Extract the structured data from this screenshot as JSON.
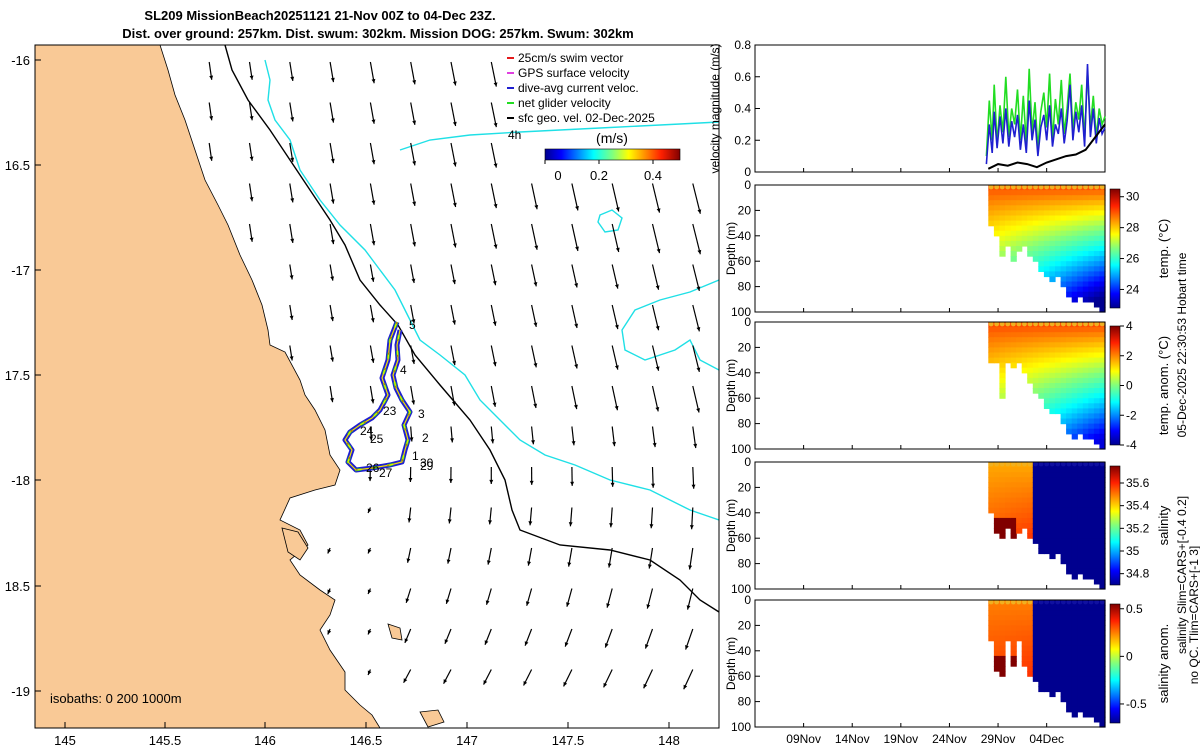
{
  "title": {
    "line1": "SL209 MissionBeach20251121 21-Nov 00Z to 04-Dec 23Z.",
    "line2": "Dist. over ground: 257km. Dist. swum: 302km. Mission DOG: 257km. Swum: 302km"
  },
  "colors": {
    "land": "#f9c996",
    "isobath_200": "#000000",
    "isobath_1000": "#1fe0e6",
    "swim_vector": "#e41a1c",
    "gps_velocity": "#e040e0",
    "dive_avg": "#1f1fd0",
    "net_velocity": "#22dd22",
    "geo_velocity": "#000000",
    "bottom_fill": "#0b0b7a"
  },
  "map": {
    "lon_ticks": [
      "145",
      "145.5",
      "146",
      "146.5",
      "147",
      "147.5",
      "148"
    ],
    "lat_ticks": [
      "-16",
      "16.5",
      "-17",
      "17.5",
      "-18",
      "18.5",
      "-19"
    ],
    "isobath_label": "isobaths: 0   200  1000m",
    "scale_label": "4h",
    "colorbar_label": "(m/s)",
    "colorbar_ticks": [
      "0",
      "0.2",
      "0.4"
    ],
    "track_day_labels": [
      {
        "text": "5"
      },
      {
        "text": "4"
      },
      {
        "text": "3"
      },
      {
        "text": "23"
      },
      {
        "text": "2"
      },
      {
        "text": "24"
      },
      {
        "text": "25"
      },
      {
        "text": "1"
      },
      {
        "text": "30"
      },
      {
        "text": "29"
      },
      {
        "text": "26"
      },
      {
        "text": "27"
      }
    ]
  },
  "legend": {
    "items": [
      {
        "label": "25cm/s swim vector",
        "color_key": "swim_vector"
      },
      {
        "label": "GPS surface velocity",
        "color_key": "gps_velocity"
      },
      {
        "label": "dive-avg current veloc.",
        "color_key": "dive_avg"
      },
      {
        "label": "net glider velocity",
        "color_key": "net_velocity"
      },
      {
        "label": "sfc geo. vel. 02-Dec-2025",
        "color_key": "geo_velocity"
      }
    ]
  },
  "timeline": {
    "x_ticks": [
      "09Nov",
      "14Nov",
      "19Nov",
      "24Nov",
      "29Nov",
      "04Dec"
    ],
    "right_note": "05-Dec-2025 22:30:53 Hobart time",
    "qc_note_line1": "salinity Slim=CARS+[-0.4 0.2]",
    "qc_note_line2": "no QC. Tlim=CARS+[-1 3]"
  },
  "chart_data": [
    {
      "type": "line",
      "title": "",
      "ylabel": "velocity magnitude (m/s)",
      "ylim": [
        0,
        0.8
      ],
      "yticks": [
        "0.8",
        "0.6",
        "0.4",
        "0.2",
        "0"
      ],
      "xlim_days": [
        0,
        36
      ],
      "series": [
        {
          "name": "net glider velocity",
          "color_key": "net_velocity",
          "x": [
            23.8,
            24.1,
            24.4,
            24.6,
            24.9,
            25.2,
            25.5,
            25.8,
            26.1,
            26.4,
            26.7,
            27.0,
            27.3,
            27.6,
            27.9,
            28.2,
            28.5,
            28.8,
            29.1,
            29.4,
            29.7,
            30.0,
            30.3,
            30.6,
            30.9,
            31.2,
            31.5,
            31.8,
            32.1,
            32.4,
            32.7,
            33.0,
            33.3,
            33.6,
            33.9,
            34.2,
            34.5,
            34.8,
            35.1,
            35.4,
            35.7,
            36.0
          ],
          "values": [
            0.1,
            0.45,
            0.2,
            0.55,
            0.18,
            0.42,
            0.25,
            0.6,
            0.22,
            0.4,
            0.3,
            0.52,
            0.2,
            0.48,
            0.18,
            0.65,
            0.25,
            0.44,
            0.15,
            0.38,
            0.5,
            0.28,
            0.62,
            0.2,
            0.46,
            0.3,
            0.58,
            0.24,
            0.4,
            0.62,
            0.26,
            0.44,
            0.33,
            0.55,
            0.2,
            0.64,
            0.28,
            0.48,
            0.22,
            0.4,
            0.3,
            0.35
          ]
        },
        {
          "name": "dive-avg current veloc.",
          "color_key": "dive_avg",
          "x": [
            23.8,
            24.1,
            24.4,
            24.6,
            24.9,
            25.2,
            25.5,
            25.8,
            26.1,
            26.4,
            26.7,
            27.0,
            27.3,
            27.6,
            27.9,
            28.2,
            28.5,
            28.8,
            29.1,
            29.4,
            29.7,
            30.0,
            30.3,
            30.6,
            30.9,
            31.2,
            31.5,
            31.8,
            32.1,
            32.4,
            32.7,
            33.0,
            33.3,
            33.6,
            33.9,
            34.2,
            34.5,
            34.8,
            35.1,
            35.4,
            35.7,
            36.0
          ],
          "values": [
            0.05,
            0.3,
            0.12,
            0.38,
            0.15,
            0.35,
            0.18,
            0.4,
            0.16,
            0.32,
            0.22,
            0.36,
            0.14,
            0.3,
            0.12,
            0.45,
            0.2,
            0.33,
            0.1,
            0.28,
            0.36,
            0.2,
            0.42,
            0.16,
            0.3,
            0.24,
            0.4,
            0.18,
            0.32,
            0.55,
            0.2,
            0.38,
            0.25,
            0.42,
            0.16,
            0.68,
            0.22,
            0.4,
            0.18,
            0.34,
            0.24,
            0.28
          ]
        },
        {
          "name": "sfc geo. vel.",
          "color_key": "geo_velocity",
          "x": [
            24.0,
            25.0,
            26.0,
            27.0,
            28.0,
            29.0,
            30.0,
            31.0,
            32.0,
            33.0,
            34.0,
            35.0,
            36.0
          ],
          "values": [
            0.02,
            0.05,
            0.04,
            0.06,
            0.05,
            0.03,
            0.06,
            0.08,
            0.1,
            0.11,
            0.14,
            0.22,
            0.3
          ]
        }
      ]
    },
    {
      "type": "heatmap",
      "ylabel": "Depth (m)",
      "cbar_label": "temp. (°C)",
      "ylim": [
        100,
        0
      ],
      "yticks": [
        "0",
        "20",
        "40",
        "60",
        "80",
        "100"
      ],
      "cbar_ticks": [
        "30",
        "28",
        "26",
        "24"
      ],
      "clim": [
        22.8,
        30.5
      ],
      "x_days": [
        24.0,
        36.0
      ],
      "bottom_fill": false,
      "profile_depths": [
        30,
        40,
        55,
        45,
        60,
        50,
        45,
        55,
        60,
        65,
        70,
        75,
        70,
        80,
        85,
        90,
        88,
        92,
        90,
        95,
        97
      ],
      "values_description_shallow": 29.0,
      "values_description_deep": 23.5
    },
    {
      "type": "heatmap",
      "ylabel": "Depth (m)",
      "cbar_label": "temp. anom. (°C)",
      "ylim": [
        100,
        0
      ],
      "yticks": [
        "0",
        "20",
        "40",
        "60",
        "80",
        "100"
      ],
      "cbar_ticks": [
        "4",
        "2",
        "0",
        "-2",
        "-4"
      ],
      "clim": [
        -4,
        4
      ],
      "x_days": [
        24.0,
        36.0
      ],
      "bottom_fill": false,
      "profile_depths": [
        30,
        30,
        60,
        30,
        35,
        30,
        40,
        45,
        55,
        60,
        65,
        70,
        72,
        80,
        85,
        90,
        88,
        92,
        90,
        95,
        97
      ],
      "values_description_shallow": 2.5,
      "values_description_deep": -2.5
    },
    {
      "type": "heatmap",
      "ylabel": "Depth (m)",
      "cbar_label": "salinity",
      "ylim": [
        100,
        0
      ],
      "yticks": [
        "0",
        "20",
        "40",
        "60",
        "80",
        "100"
      ],
      "cbar_ticks": [
        "35.6",
        "35.4",
        "35.2",
        "35",
        "34.8"
      ],
      "clim": [
        34.7,
        35.75
      ],
      "x_days": [
        24.0,
        36.0
      ],
      "bottom_fill": true,
      "profile_depths": [
        40,
        55,
        60,
        50,
        60,
        55,
        50,
        58,
        62,
        70,
        72,
        75,
        72,
        80,
        85,
        90,
        88,
        92,
        90,
        95,
        97
      ],
      "values_description_shallow": 35.45,
      "values_description_deep": 35.7
    },
    {
      "type": "heatmap",
      "ylabel": "Depth (m)",
      "cbar_label": "salinity anom.",
      "ylim": [
        100,
        0
      ],
      "yticks": [
        "0",
        "20",
        "40",
        "60",
        "80",
        "100"
      ],
      "cbar_ticks": [
        "0.5",
        "0",
        "-0.5"
      ],
      "clim": [
        -0.7,
        0.55
      ],
      "x_days": [
        24.0,
        36.0
      ],
      "bottom_fill": true,
      "profile_depths": [
        30,
        55,
        60,
        30,
        50,
        30,
        50,
        58,
        62,
        70,
        72,
        75,
        72,
        80,
        85,
        90,
        88,
        92,
        90,
        95,
        97
      ],
      "values_description_shallow": 0.25,
      "values_description_deep": 0.45
    }
  ]
}
